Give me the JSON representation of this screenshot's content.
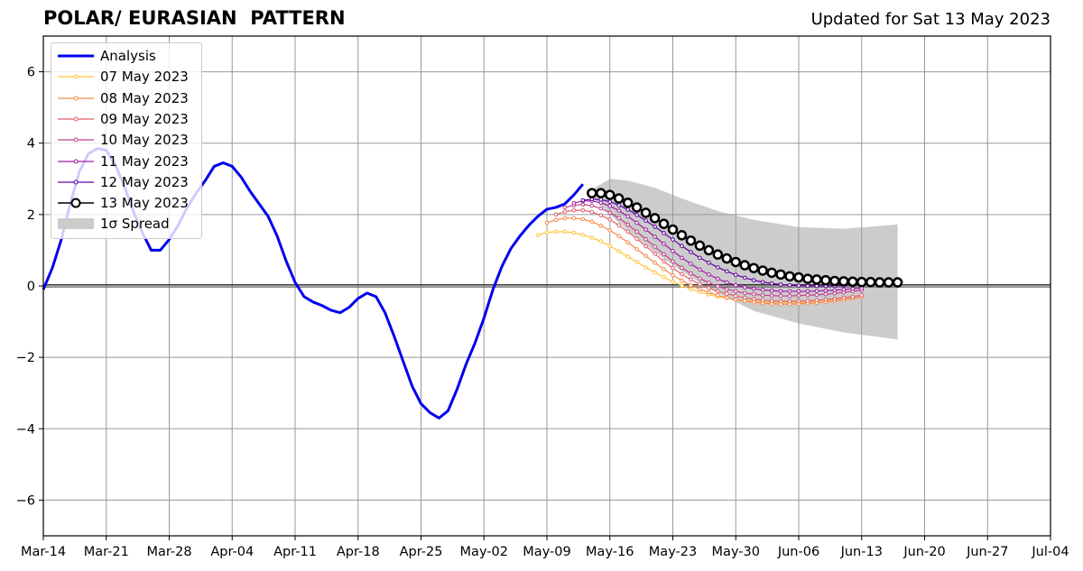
{
  "header": {
    "title": "POLAR/ EURASIAN  PATTERN",
    "subtitle": "Updated for Sat 13 May 2023"
  },
  "chart_data": {
    "type": "line",
    "title": "POLAR/ EURASIAN  PATTERN",
    "subtitle": "Updated for Sat 13 May 2023",
    "xlabel": "",
    "ylabel": "",
    "x_axis": {
      "type": "date",
      "range": [
        "2023-03-14",
        "2023-07-04"
      ],
      "tick_dates": [
        "2023-03-14",
        "2023-03-21",
        "2023-03-28",
        "2023-04-04",
        "2023-04-11",
        "2023-04-18",
        "2023-04-25",
        "2023-05-02",
        "2023-05-09",
        "2023-05-16",
        "2023-05-23",
        "2023-05-30",
        "2023-06-06",
        "2023-06-13",
        "2023-06-20",
        "2023-06-27",
        "2023-07-04"
      ],
      "tick_labels": [
        "Mar-14",
        "Mar-21",
        "Mar-28",
        "Apr-04",
        "Apr-11",
        "Apr-18",
        "Apr-25",
        "May-02",
        "May-09",
        "May-16",
        "May-23",
        "May-30",
        "Jun-06",
        "Jun-13",
        "Jun-20",
        "Jun-27",
        "Jul-04"
      ]
    },
    "ylim": [
      -7,
      7
    ],
    "y_ticks": [
      -6,
      -4,
      -2,
      0,
      2,
      4,
      6
    ],
    "y_tick_labels": [
      "−6",
      "−4",
      "−2",
      "0",
      "2",
      "4",
      "6"
    ],
    "grid": true,
    "legend_position": "upper-left",
    "analysis": {
      "name": "Analysis",
      "color": "#0000ee",
      "start_date": "2023-03-14",
      "values": [
        -0.1,
        0.5,
        1.3,
        2.3,
        3.2,
        3.7,
        3.85,
        3.8,
        3.4,
        2.8,
        2.1,
        1.5,
        1.0,
        1.0,
        1.3,
        1.7,
        2.2,
        2.6,
        2.95,
        3.35,
        3.45,
        3.35,
        3.05,
        2.65,
        2.3,
        1.95,
        1.4,
        0.7,
        0.1,
        -0.3,
        -0.45,
        -0.55,
        -0.68,
        -0.75,
        -0.6,
        -0.35,
        -0.2,
        -0.3,
        -0.75,
        -1.4,
        -2.1,
        -2.8,
        -3.3,
        -3.55,
        -3.7,
        -3.5,
        -2.9,
        -2.2,
        -1.6,
        -0.9,
        -0.1,
        0.55,
        1.05,
        1.4,
        1.7,
        1.95,
        2.15,
        2.2,
        2.3,
        2.55,
        2.85
      ]
    },
    "forecasts": [
      {
        "name": "07 May 2023",
        "color": "#ffc33a",
        "start_date": "2023-05-08",
        "values": [
          1.42,
          1.5,
          1.52,
          1.52,
          1.49,
          1.43,
          1.35,
          1.25,
          1.12,
          0.97,
          0.82,
          0.67,
          0.52,
          0.38,
          0.25,
          0.12,
          0.01,
          -0.09,
          -0.17,
          -0.24,
          -0.3,
          -0.34,
          -0.38,
          -0.41,
          -0.43,
          -0.45,
          -0.46,
          -0.47,
          -0.47,
          -0.46,
          -0.45,
          -0.43,
          -0.41,
          -0.38,
          -0.35,
          -0.31
        ]
      },
      {
        "name": "08 May 2023",
        "color": "#f5894a",
        "start_date": "2023-05-09",
        "values": [
          1.77,
          1.85,
          1.9,
          1.9,
          1.87,
          1.8,
          1.69,
          1.56,
          1.4,
          1.22,
          1.03,
          0.84,
          0.65,
          0.47,
          0.3,
          0.15,
          0.02,
          -0.09,
          -0.18,
          -0.26,
          -0.33,
          -0.38,
          -0.42,
          -0.46,
          -0.48,
          -0.5,
          -0.51,
          -0.51,
          -0.5,
          -0.49,
          -0.47,
          -0.45,
          -0.42,
          -0.39,
          -0.35,
          -0.31
        ]
      },
      {
        "name": "09 May 2023",
        "color": "#e0606a",
        "start_date": "2023-05-10",
        "values": [
          2.0,
          2.08,
          2.12,
          2.12,
          2.07,
          1.98,
          1.86,
          1.7,
          1.52,
          1.32,
          1.11,
          0.9,
          0.69,
          0.5,
          0.33,
          0.18,
          0.05,
          -0.06,
          -0.15,
          -0.22,
          -0.28,
          -0.33,
          -0.37,
          -0.4,
          -0.42,
          -0.43,
          -0.43,
          -0.43,
          -0.42,
          -0.4,
          -0.38,
          -0.36,
          -0.33,
          -0.3,
          -0.26
        ]
      },
      {
        "name": "10 May 2023",
        "color": "#c2418b",
        "start_date": "2023-05-11",
        "values": [
          2.2,
          2.26,
          2.28,
          2.25,
          2.17,
          2.05,
          1.9,
          1.72,
          1.52,
          1.31,
          1.1,
          0.89,
          0.69,
          0.51,
          0.35,
          0.21,
          0.09,
          -0.01,
          -0.09,
          -0.15,
          -0.2,
          -0.23,
          -0.26,
          -0.27,
          -0.28,
          -0.28,
          -0.27,
          -0.26,
          -0.25,
          -0.23,
          -0.21,
          -0.18,
          -0.15,
          -0.12
        ]
      },
      {
        "name": "11 May 2023",
        "color": "#9f1aa3",
        "start_date": "2023-05-12",
        "values": [
          2.32,
          2.38,
          2.38,
          2.33,
          2.24,
          2.11,
          1.95,
          1.77,
          1.58,
          1.38,
          1.18,
          0.98,
          0.79,
          0.62,
          0.46,
          0.32,
          0.2,
          0.1,
          0.02,
          -0.04,
          -0.08,
          -0.11,
          -0.13,
          -0.15,
          -0.15,
          -0.15,
          -0.15,
          -0.14,
          -0.13,
          -0.12,
          -0.1,
          -0.08,
          -0.06
        ]
      },
      {
        "name": "12 May 2023",
        "color": "#5d00a0",
        "start_date": "2023-05-13",
        "values": [
          2.4,
          2.43,
          2.42,
          2.36,
          2.26,
          2.14,
          1.99,
          1.83,
          1.66,
          1.48,
          1.3,
          1.12,
          0.95,
          0.79,
          0.65,
          0.52,
          0.41,
          0.31,
          0.23,
          0.16,
          0.11,
          0.07,
          0.04,
          0.02,
          0.01,
          0.0,
          0.0,
          0.0,
          0.0,
          0.01,
          0.02,
          0.03
        ]
      },
      {
        "name": "13 May 2023",
        "color": "#000000",
        "start_date": "2023-05-14",
        "values": [
          2.6,
          2.6,
          2.55,
          2.45,
          2.33,
          2.2,
          2.05,
          1.9,
          1.74,
          1.58,
          1.42,
          1.27,
          1.13,
          1.0,
          0.88,
          0.77,
          0.67,
          0.58,
          0.5,
          0.43,
          0.37,
          0.32,
          0.27,
          0.24,
          0.2,
          0.18,
          0.16,
          0.14,
          0.13,
          0.12,
          0.11,
          0.11,
          0.1,
          0.1,
          0.1
        ]
      }
    ],
    "spread": {
      "name": "1σ Spread",
      "color": "#cccccc",
      "dates": [
        "2023-05-14",
        "2023-05-16",
        "2023-05-18",
        "2023-05-21",
        "2023-05-24",
        "2023-05-28",
        "2023-06-01",
        "2023-06-06",
        "2023-06-11",
        "2023-06-17"
      ],
      "upper": [
        2.7,
        3.0,
        2.95,
        2.75,
        2.45,
        2.1,
        1.85,
        1.65,
        1.6,
        1.72
      ],
      "lower": [
        2.5,
        2.0,
        1.55,
        0.95,
        0.4,
        -0.2,
        -0.7,
        -1.05,
        -1.3,
        -1.5
      ]
    }
  },
  "legend": {
    "items": [
      {
        "label": "Analysis",
        "kind": "thick-line",
        "color": "#0000ee"
      },
      {
        "label": "07 May 2023",
        "kind": "dot-line",
        "color": "#ffc33a"
      },
      {
        "label": "08 May 2023",
        "kind": "dot-line",
        "color": "#f5894a"
      },
      {
        "label": "09 May 2023",
        "kind": "dot-line",
        "color": "#e0606a"
      },
      {
        "label": "10 May 2023",
        "kind": "dot-line",
        "color": "#c2418b"
      },
      {
        "label": "11 May 2023",
        "kind": "dot-line",
        "color": "#9f1aa3"
      },
      {
        "label": "12 May 2023",
        "kind": "dot-line",
        "color": "#5d00a0"
      },
      {
        "label": "13 May 2023",
        "kind": "circle-line",
        "color": "#000000"
      },
      {
        "label": "1σ Spread",
        "kind": "patch",
        "color": "#cccccc"
      }
    ]
  }
}
